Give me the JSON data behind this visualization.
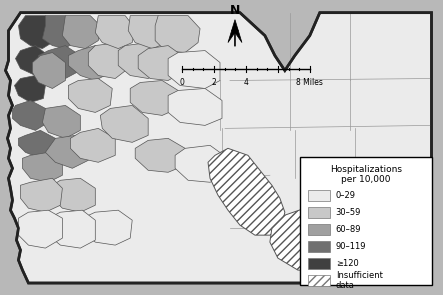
{
  "background_color": "#b8b8b8",
  "map_fill_base": "#d4d4d4",
  "outer_border_color": "#222222",
  "inner_border_color": "#888888",
  "colors": {
    "c0": "#ebebeb",
    "c1": "#c8c8c8",
    "c2": "#a0a0a0",
    "c3": "#707070",
    "c4": "#404040",
    "hatch": "#ffffff"
  },
  "legend": {
    "title_line1": "Hospitalizations",
    "title_line2": "per 10,000",
    "entries": [
      {
        "label": "0–29",
        "color": "#ebebeb",
        "hatch": null
      },
      {
        "label": "30–59",
        "color": "#c8c8c8",
        "hatch": null
      },
      {
        "label": "60–89",
        "color": "#a0a0a0",
        "hatch": null
      },
      {
        "label": "90–119",
        "color": "#707070",
        "hatch": null
      },
      {
        "label": "≥120",
        "color": "#404040",
        "hatch": null
      },
      {
        "label": "Insufficient\ndata",
        "color": "#ffffff",
        "hatch": "////"
      }
    ]
  },
  "figsize": [
    4.43,
    2.95
  ],
  "dpi": 100
}
